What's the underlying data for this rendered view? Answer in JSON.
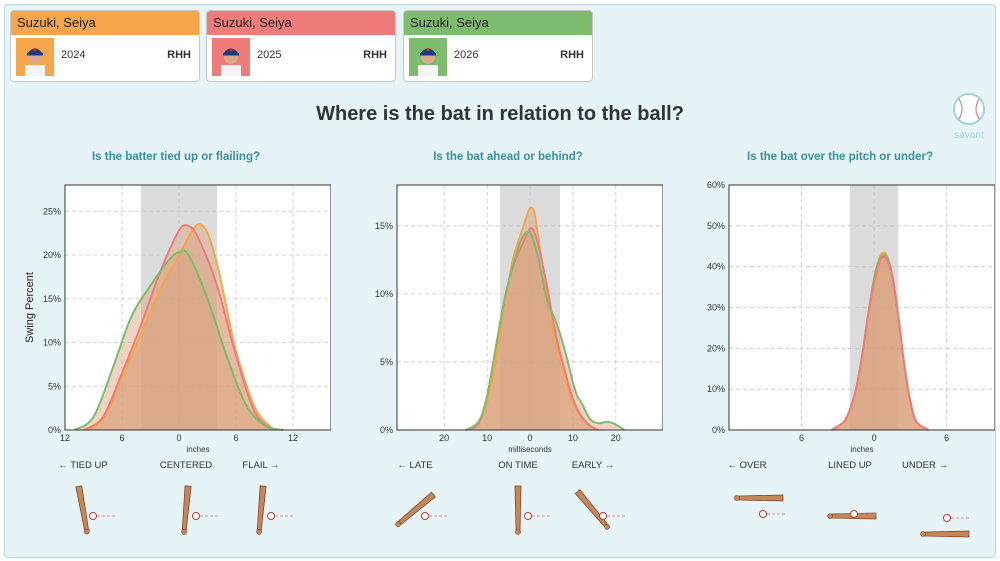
{
  "player_cards": [
    {
      "name": "Suzuki, Seiya",
      "year": "2024",
      "hand": "RHH",
      "color": "#f5a54a"
    },
    {
      "name": "Suzuki, Seiya",
      "year": "2025",
      "hand": "RHH",
      "color": "#f07b7b"
    },
    {
      "name": "Suzuki, Seiya",
      "year": "2026",
      "hand": "RHH",
      "color": "#7dbb6e"
    }
  ],
  "main_title": "Where is the bat in relation to the ball?",
  "logo_text": "savant",
  "y_label": "Swing Percent",
  "chart_data": [
    {
      "type": "area",
      "subtitle": "Is the batter tied up or flailing?",
      "xlabel": "inches",
      "x_ticks": [
        {
          "v": -12,
          "t": "12"
        },
        {
          "v": -6,
          "t": "6"
        },
        {
          "v": 0,
          "t": "0"
        },
        {
          "v": 6,
          "t": "6"
        },
        {
          "v": 12,
          "t": "12"
        }
      ],
      "xlim": [
        -12,
        16
      ],
      "ylim": [
        0,
        28
      ],
      "y_ticks": [
        {
          "v": 0,
          "t": "0%"
        },
        {
          "v": 5,
          "t": "5%"
        },
        {
          "v": 10,
          "t": "10%"
        },
        {
          "v": 15,
          "t": "15%"
        },
        {
          "v": 20,
          "t": "20%"
        },
        {
          "v": 25,
          "t": "25%"
        }
      ],
      "band": [
        -4,
        4
      ],
      "fill_color": "#d9a07a",
      "bottom_labels": [
        "← TIED UP",
        "CENTERED",
        "FLAIL →"
      ],
      "series": [
        {
          "color": "#f5a54a",
          "x": [
            -10,
            -8,
            -6,
            -4,
            -2,
            0,
            1,
            2,
            3,
            4,
            5,
            6,
            8,
            10
          ],
          "y": [
            0,
            1.2,
            6,
            11,
            16,
            20,
            22,
            23.5,
            22.5,
            19,
            14,
            9,
            2.5,
            0
          ]
        },
        {
          "color": "#f07b7b",
          "x": [
            -10,
            -8,
            -6,
            -4,
            -2,
            0,
            1,
            2,
            4,
            6,
            8,
            10
          ],
          "y": [
            0,
            1.5,
            6.5,
            12,
            18,
            22.8,
            23.3,
            22,
            16.5,
            8.5,
            2,
            0
          ]
        },
        {
          "color": "#7dbb6e",
          "x": [
            -11,
            -9,
            -7,
            -5,
            -3,
            -1,
            0,
            1,
            3,
            5,
            7,
            9,
            11
          ],
          "y": [
            0,
            1.5,
            7,
            13,
            16.5,
            19.5,
            20.3,
            20,
            15,
            8.5,
            3,
            0.5,
            0
          ]
        }
      ]
    },
    {
      "type": "area",
      "subtitle": "Is the bat ahead or behind?",
      "xlabel": "milliseconds",
      "x_ticks": [
        {
          "v": -20,
          "t": "20"
        },
        {
          "v": -10,
          "t": "10"
        },
        {
          "v": 0,
          "t": "0"
        },
        {
          "v": 10,
          "t": "10"
        },
        {
          "v": 20,
          "t": "20"
        }
      ],
      "xlim": [
        -31,
        31
      ],
      "ylim": [
        0,
        18
      ],
      "y_ticks": [
        {
          "v": 0,
          "t": "0%"
        },
        {
          "v": 5,
          "t": "5%"
        },
        {
          "v": 10,
          "t": "10%"
        },
        {
          "v": 15,
          "t": "15%"
        }
      ],
      "band": [
        -7,
        7
      ],
      "fill_color": "#d9a07a",
      "bottom_labels": [
        "← LATE",
        "ON TIME",
        "EARLY →"
      ],
      "series": [
        {
          "color": "#f5a54a",
          "x": [
            -15,
            -12,
            -10,
            -8,
            -6,
            -4,
            -2,
            -1,
            0,
            1,
            2,
            4,
            6,
            8,
            10,
            12,
            14,
            16
          ],
          "y": [
            0,
            0.5,
            2,
            5,
            9,
            12.5,
            14.5,
            15.5,
            16.3,
            16,
            14,
            10,
            6.5,
            4,
            2,
            1,
            0.3,
            0
          ]
        },
        {
          "color": "#f07b7b",
          "x": [
            -15,
            -12,
            -10,
            -8,
            -6,
            -4,
            -2,
            0,
            1,
            2,
            4,
            6,
            8,
            10,
            12,
            14,
            16
          ],
          "y": [
            0,
            0.5,
            2.5,
            6,
            9.5,
            12,
            13.5,
            14.8,
            14.5,
            13.5,
            10.5,
            7,
            4.5,
            2.3,
            1,
            0.3,
            0
          ]
        },
        {
          "color": "#7dbb6e",
          "x": [
            -15,
            -12,
            -10,
            -8,
            -6,
            -4,
            -2,
            0,
            2,
            4,
            6,
            8,
            10,
            11,
            12,
            14,
            16,
            18,
            20,
            22
          ],
          "y": [
            0,
            0.6,
            2.5,
            6,
            9.5,
            12,
            14,
            14.5,
            12.5,
            9.5,
            8,
            6,
            3.5,
            2.5,
            2,
            0.8,
            0.5,
            0.6,
            0.4,
            0
          ]
        }
      ]
    },
    {
      "type": "area",
      "subtitle": "Is the bat over the pitch or under?",
      "xlabel": "inches",
      "x_ticks": [
        {
          "v": -6,
          "t": "6"
        },
        {
          "v": 0,
          "t": "0"
        },
        {
          "v": 6,
          "t": "6"
        }
      ],
      "xlim": [
        -12,
        10
      ],
      "ylim": [
        0,
        60
      ],
      "y_ticks": [
        {
          "v": 0,
          "t": "0%"
        },
        {
          "v": 10,
          "t": "10%"
        },
        {
          "v": 20,
          "t": "20%"
        },
        {
          "v": 30,
          "t": "30%"
        },
        {
          "v": 40,
          "t": "40%"
        },
        {
          "v": 50,
          "t": "50%"
        },
        {
          "v": 60,
          "t": "60%"
        }
      ],
      "band": [
        -2,
        2
      ],
      "fill_color": "#d9a07a",
      "bottom_labels": [
        "← OVER",
        "LINED UP",
        "UNDER →"
      ],
      "series": [
        {
          "color": "#f5a54a",
          "x": [
            -3.5,
            -2.5,
            -2,
            -1.5,
            -1,
            -0.5,
            0,
            0.5,
            1,
            1.5,
            2,
            2.5,
            3,
            3.5,
            4.5
          ],
          "y": [
            0,
            2,
            5,
            10,
            18,
            28,
            37,
            42.5,
            43,
            38,
            28,
            16,
            7,
            2,
            0
          ]
        },
        {
          "color": "#7dbb6e",
          "x": [
            -3.5,
            -2.5,
            -2,
            -1.5,
            -1,
            -0.5,
            0,
            0.5,
            1,
            1.5,
            2,
            2.5,
            3,
            3.5,
            4.5
          ],
          "y": [
            0,
            2,
            5,
            10,
            18,
            28,
            37,
            42,
            42.5,
            38,
            28,
            16,
            7,
            2,
            0
          ]
        },
        {
          "color": "#f07b7b",
          "x": [
            -3.5,
            -2.5,
            -2,
            -1.5,
            -1,
            -0.5,
            0,
            0.5,
            1,
            1.5,
            2,
            2.5,
            3,
            3.5,
            4.5
          ],
          "y": [
            0,
            2,
            5,
            10,
            18,
            28,
            36,
            41.5,
            42,
            37.5,
            27.5,
            16,
            7,
            2,
            0
          ]
        }
      ]
    }
  ]
}
